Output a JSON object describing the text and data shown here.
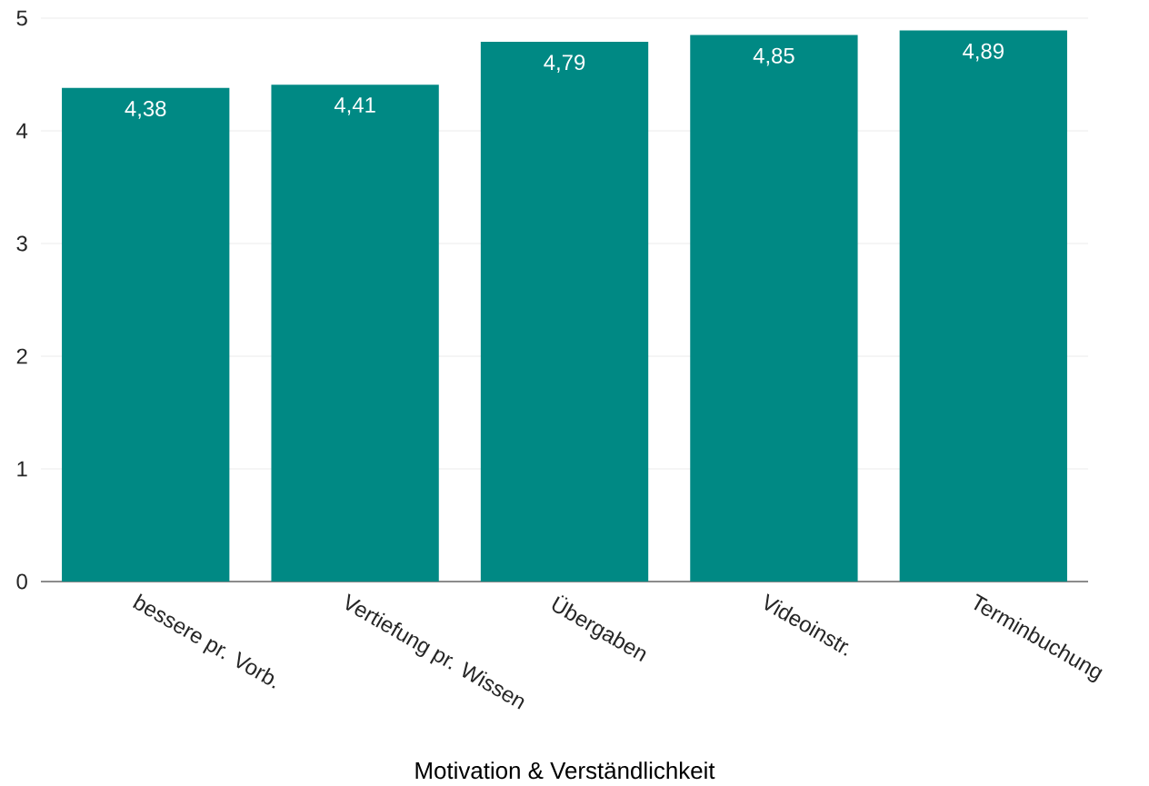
{
  "chart_data": {
    "type": "bar",
    "categories": [
      "bessere pr. Vorb.",
      "Vertiefung pr. Wissen",
      "Übergaben",
      "Videoinstr.",
      "Terminbuchung"
    ],
    "values": [
      4.38,
      4.41,
      4.79,
      4.85,
      4.89
    ],
    "value_labels": [
      "4,38",
      "4,41",
      "4,79",
      "4,85",
      "4,89"
    ],
    "color": "#008984",
    "xlabel": "Motivation & Verständlichkeit",
    "ylim": [
      0,
      5
    ],
    "yticks": [
      0,
      1,
      2,
      3,
      4,
      5
    ],
    "grid": "y"
  }
}
